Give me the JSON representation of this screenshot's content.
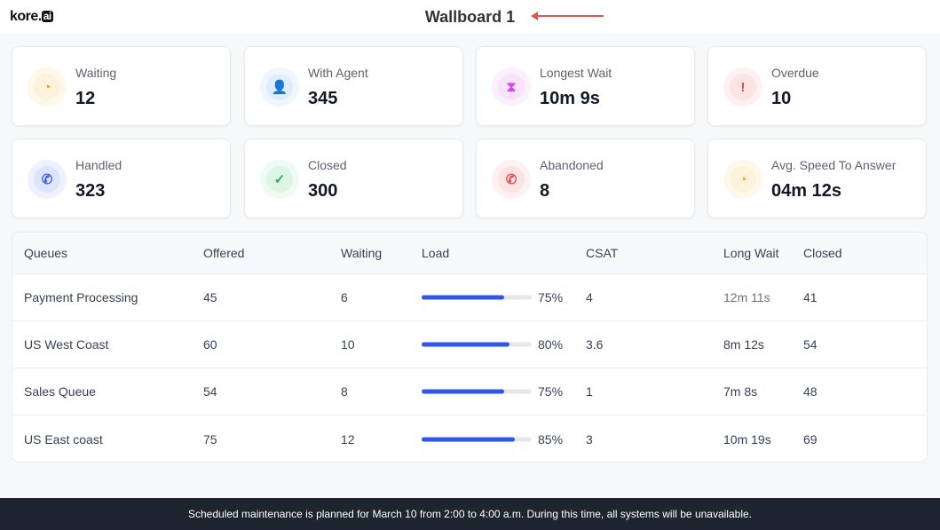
{
  "header": {
    "logo": "kore",
    "logo_suffix": "ai",
    "title": "Wallboard 1"
  },
  "cards": [
    {
      "label": "Waiting",
      "value": "12",
      "icon": "clock-icon",
      "glyph": "◔",
      "color": "#f0a020",
      "bg": "#fdf3dc",
      "ring": "#fef8ea"
    },
    {
      "label": "With Agent",
      "value": "345",
      "icon": "user-icon",
      "glyph": "👤",
      "color": "#3b9be8",
      "bg": "#dfeefc",
      "ring": "#eef6fe"
    },
    {
      "label": "Longest Wait",
      "value": "10m 9s",
      "icon": "hourglass-icon",
      "glyph": "⧗",
      "color": "#d946ef",
      "bg": "#f7e3fc",
      "ring": "#fbf1fe"
    },
    {
      "label": "Overdue",
      "value": "10",
      "icon": "alert-icon",
      "glyph": "!",
      "color": "#e5484d",
      "bg": "#fde3e3",
      "ring": "#fef1f1"
    },
    {
      "label": "Handled",
      "value": "323",
      "icon": "phone-icon",
      "glyph": "✆",
      "color": "#3b5fe0",
      "bg": "#dde5fd",
      "ring": "#eef2fe"
    },
    {
      "label": "Closed",
      "value": "300",
      "icon": "check-circle-icon",
      "glyph": "✓",
      "color": "#2eaa5c",
      "bg": "#dcf5e5",
      "ring": "#eefbf2"
    },
    {
      "label": "Abandoned",
      "value": "8",
      "icon": "phone-missed-icon",
      "glyph": "✆",
      "color": "#e5484d",
      "bg": "#fde3e3",
      "ring": "#fef1f1"
    },
    {
      "label": "Avg. Speed To Answer",
      "value": "04m 12s",
      "icon": "stopwatch-icon",
      "glyph": "◔",
      "color": "#f0a020",
      "bg": "#fdf3dc",
      "ring": "#fef8ea"
    }
  ],
  "table": {
    "columns": [
      "Queues",
      "Offered",
      "Waiting",
      "Load",
      "CSAT",
      "Long Wait",
      "Closed"
    ],
    "rows": [
      {
        "queue": "Payment Processing",
        "offered": "45",
        "waiting": "6",
        "load": 75,
        "load_label": "75%",
        "csat": "4",
        "long_wait": "12m 11s",
        "closed": "41"
      },
      {
        "queue": "US West Coast",
        "offered": "60",
        "waiting": "10",
        "load": 80,
        "load_label": "80%",
        "csat": "3.6",
        "long_wait": "8m 12s",
        "closed": "54"
      },
      {
        "queue": "Sales Queue",
        "offered": "54",
        "waiting": "8",
        "load": 75,
        "load_label": "75%",
        "csat": "1",
        "long_wait": "7m 8s",
        "closed": "48"
      },
      {
        "queue": "US East coast",
        "offered": "75",
        "waiting": "12",
        "load": 85,
        "load_label": "85%",
        "csat": "3",
        "long_wait": "10m 19s",
        "closed": "69"
      }
    ]
  },
  "footer": {
    "message": "Scheduled maintenance is planned for March 10 from 2:00 to 4:00 a.m. During this time, all systems will be unavailable."
  },
  "colors": {
    "accent": "#2f56e8",
    "footer_bg": "#1e2430"
  }
}
